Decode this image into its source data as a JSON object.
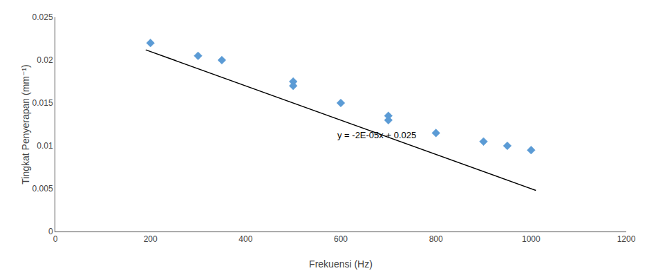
{
  "chart_data": {
    "type": "scatter",
    "xlabel": "Frekuensi (Hz)",
    "ylabel": "Tingkat Penyerapan (mm⁻¹)",
    "series": [
      {
        "type": "scatter",
        "marker": "diamond",
        "color": "#5B9BD5",
        "x": [
          200,
          300,
          350,
          500,
          500,
          600,
          700,
          700,
          800,
          900,
          950,
          1000
        ],
        "values": [
          0.022,
          0.0205,
          0.02,
          0.0175,
          0.017,
          0.015,
          0.0135,
          0.013,
          0.0115,
          0.0105,
          0.01,
          0.0095
        ]
      },
      {
        "type": "line",
        "color": "#000000",
        "line_style": "solid",
        "x": [
          190,
          1010
        ],
        "values": [
          0.0212,
          0.0048
        ]
      }
    ],
    "annotations": [
      {
        "text": "y = -2E-05x + 0.025",
        "x": 590,
        "y": 0.0105
      }
    ],
    "xlim": [
      0,
      1200
    ],
    "ylim": [
      0,
      0.025
    ],
    "xticks": [
      0,
      200,
      400,
      600,
      800,
      1000,
      1200
    ],
    "yticks": [
      0,
      0.005,
      0.01,
      0.015,
      0.02,
      0.025
    ],
    "grid": false
  }
}
